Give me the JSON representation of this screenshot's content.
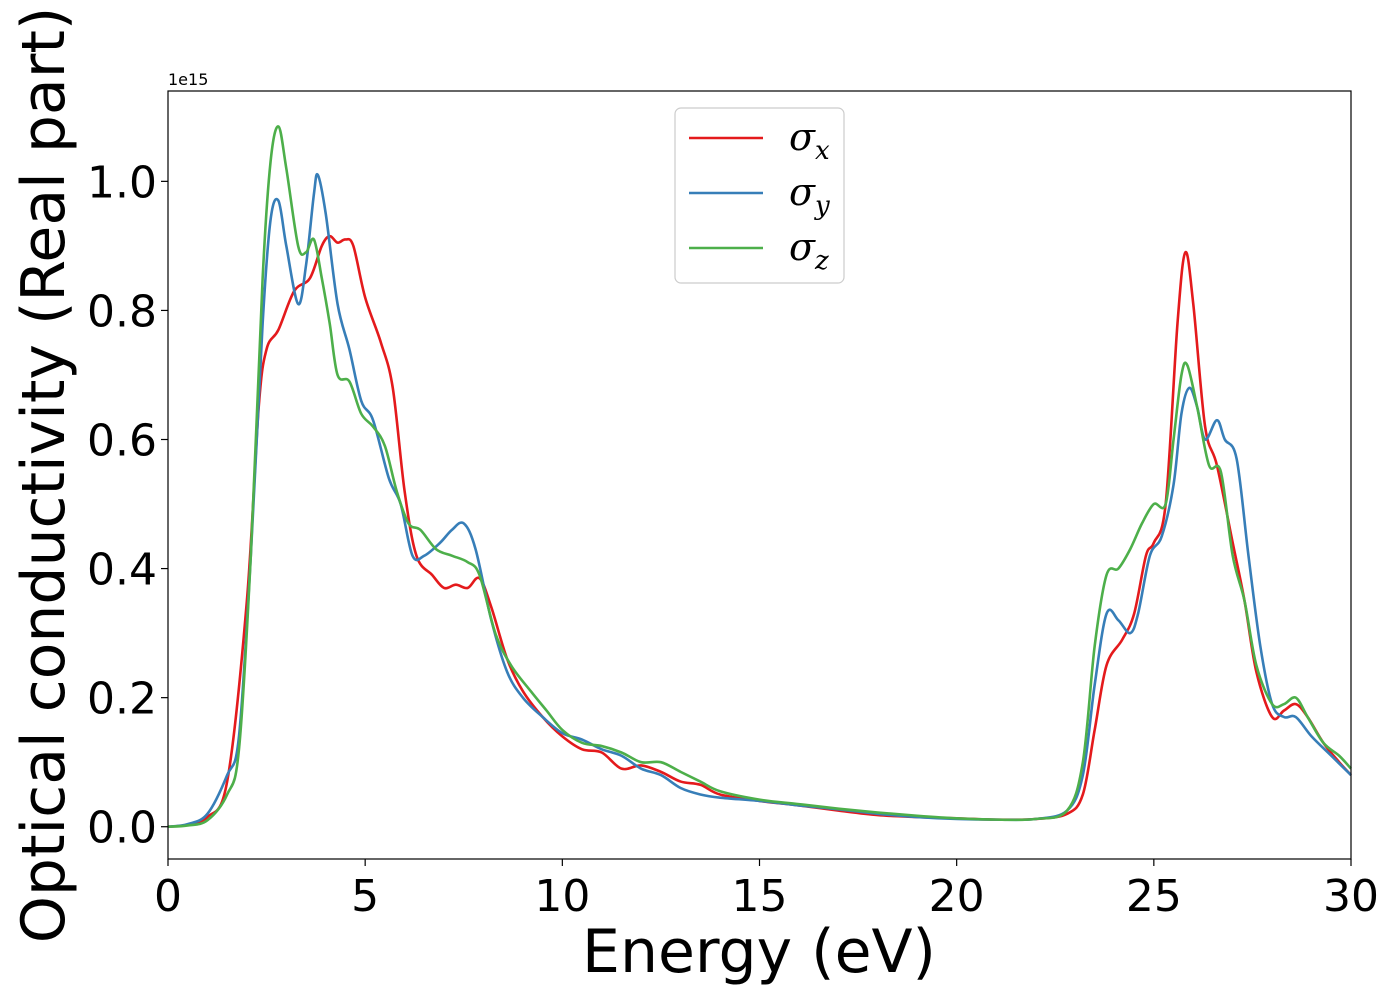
{
  "chart_data": {
    "type": "line",
    "xlabel": "Energy (eV)",
    "ylabel": "Optical conductivity (Real part)",
    "y_offset_text": "1e15",
    "xlim": [
      0,
      30
    ],
    "ylim": [
      -0.05,
      1.14
    ],
    "x_ticks": [
      0,
      5,
      10,
      15,
      20,
      25,
      30
    ],
    "x_tick_labels": [
      "0",
      "5",
      "10",
      "15",
      "20",
      "25",
      "30"
    ],
    "y_ticks": [
      0.0,
      0.2,
      0.4,
      0.6,
      0.8,
      1.0
    ],
    "y_tick_labels": [
      "0.0",
      "0.2",
      "0.4",
      "0.6",
      "0.8",
      "1.0"
    ],
    "grid": false,
    "legend_position": "top-center",
    "series": [
      {
        "name": "σ",
        "subscript": "x",
        "color": "#e41a1c",
        "points": [
          [
            0,
            0
          ],
          [
            0.5,
            0.003
          ],
          [
            1.0,
            0.015
          ],
          [
            1.5,
            0.07
          ],
          [
            2.0,
            0.35
          ],
          [
            2.3,
            0.65
          ],
          [
            2.5,
            0.74
          ],
          [
            2.8,
            0.77
          ],
          [
            3.2,
            0.83
          ],
          [
            3.6,
            0.85
          ],
          [
            3.9,
            0.9
          ],
          [
            4.1,
            0.915
          ],
          [
            4.3,
            0.905
          ],
          [
            4.5,
            0.91
          ],
          [
            4.7,
            0.9
          ],
          [
            5.0,
            0.82
          ],
          [
            5.4,
            0.75
          ],
          [
            5.7,
            0.68
          ],
          [
            6.0,
            0.52
          ],
          [
            6.3,
            0.42
          ],
          [
            6.7,
            0.39
          ],
          [
            7.0,
            0.37
          ],
          [
            7.3,
            0.375
          ],
          [
            7.6,
            0.37
          ],
          [
            7.9,
            0.385
          ],
          [
            8.2,
            0.34
          ],
          [
            8.6,
            0.26
          ],
          [
            9.0,
            0.21
          ],
          [
            9.5,
            0.17
          ],
          [
            10.0,
            0.14
          ],
          [
            10.5,
            0.12
          ],
          [
            11.0,
            0.115
          ],
          [
            11.5,
            0.09
          ],
          [
            12.0,
            0.095
          ],
          [
            12.5,
            0.085
          ],
          [
            13.0,
            0.07
          ],
          [
            13.5,
            0.065
          ],
          [
            14.0,
            0.05
          ],
          [
            15.0,
            0.04
          ],
          [
            16.0,
            0.033
          ],
          [
            17.0,
            0.025
          ],
          [
            18.0,
            0.018
          ],
          [
            19.0,
            0.015
          ],
          [
            20.0,
            0.013
          ],
          [
            21.0,
            0.011
          ],
          [
            22.0,
            0.012
          ],
          [
            22.8,
            0.02
          ],
          [
            23.2,
            0.05
          ],
          [
            23.5,
            0.15
          ],
          [
            23.8,
            0.25
          ],
          [
            24.2,
            0.29
          ],
          [
            24.5,
            0.33
          ],
          [
            24.8,
            0.42
          ],
          [
            25.0,
            0.44
          ],
          [
            25.3,
            0.5
          ],
          [
            25.6,
            0.78
          ],
          [
            25.8,
            0.89
          ],
          [
            26.0,
            0.81
          ],
          [
            26.3,
            0.62
          ],
          [
            26.6,
            0.56
          ],
          [
            27.0,
            0.44
          ],
          [
            27.3,
            0.35
          ],
          [
            27.6,
            0.24
          ],
          [
            28.0,
            0.17
          ],
          [
            28.3,
            0.18
          ],
          [
            28.6,
            0.19
          ],
          [
            28.9,
            0.17
          ],
          [
            29.3,
            0.13
          ],
          [
            29.7,
            0.1
          ],
          [
            30.0,
            0.08
          ]
        ]
      },
      {
        "name": "σ",
        "subscript": "y",
        "color": "#377eb8",
        "points": [
          [
            0,
            0
          ],
          [
            0.5,
            0.004
          ],
          [
            1.0,
            0.02
          ],
          [
            1.5,
            0.08
          ],
          [
            1.8,
            0.14
          ],
          [
            2.1,
            0.42
          ],
          [
            2.4,
            0.78
          ],
          [
            2.6,
            0.94
          ],
          [
            2.8,
            0.97
          ],
          [
            3.0,
            0.9
          ],
          [
            3.3,
            0.81
          ],
          [
            3.5,
            0.87
          ],
          [
            3.7,
            0.98
          ],
          [
            3.8,
            1.01
          ],
          [
            4.0,
            0.95
          ],
          [
            4.3,
            0.81
          ],
          [
            4.6,
            0.74
          ],
          [
            4.9,
            0.66
          ],
          [
            5.2,
            0.63
          ],
          [
            5.6,
            0.54
          ],
          [
            5.9,
            0.5
          ],
          [
            6.2,
            0.42
          ],
          [
            6.5,
            0.42
          ],
          [
            6.9,
            0.44
          ],
          [
            7.2,
            0.46
          ],
          [
            7.5,
            0.47
          ],
          [
            7.8,
            0.43
          ],
          [
            8.2,
            0.32
          ],
          [
            8.6,
            0.24
          ],
          [
            9.0,
            0.2
          ],
          [
            9.5,
            0.17
          ],
          [
            10.0,
            0.145
          ],
          [
            10.5,
            0.135
          ],
          [
            11.0,
            0.12
          ],
          [
            11.5,
            0.11
          ],
          [
            12.0,
            0.09
          ],
          [
            12.5,
            0.08
          ],
          [
            13.0,
            0.06
          ],
          [
            13.5,
            0.05
          ],
          [
            14.0,
            0.045
          ],
          [
            15.0,
            0.04
          ],
          [
            16.0,
            0.033
          ],
          [
            17.0,
            0.027
          ],
          [
            18.0,
            0.02
          ],
          [
            19.0,
            0.015
          ],
          [
            20.0,
            0.012
          ],
          [
            21.0,
            0.011
          ],
          [
            22.0,
            0.012
          ],
          [
            22.8,
            0.025
          ],
          [
            23.2,
            0.08
          ],
          [
            23.5,
            0.22
          ],
          [
            23.8,
            0.33
          ],
          [
            24.1,
            0.32
          ],
          [
            24.4,
            0.3
          ],
          [
            24.6,
            0.33
          ],
          [
            24.9,
            0.42
          ],
          [
            25.2,
            0.45
          ],
          [
            25.5,
            0.53
          ],
          [
            25.7,
            0.64
          ],
          [
            25.9,
            0.68
          ],
          [
            26.1,
            0.65
          ],
          [
            26.3,
            0.6
          ],
          [
            26.6,
            0.63
          ],
          [
            26.8,
            0.6
          ],
          [
            27.1,
            0.57
          ],
          [
            27.4,
            0.42
          ],
          [
            27.7,
            0.28
          ],
          [
            28.0,
            0.19
          ],
          [
            28.3,
            0.17
          ],
          [
            28.6,
            0.17
          ],
          [
            29.0,
            0.14
          ],
          [
            29.5,
            0.11
          ],
          [
            30.0,
            0.08
          ]
        ]
      },
      {
        "name": "σ",
        "subscript": "z",
        "color": "#4daf4a",
        "points": [
          [
            0,
            0
          ],
          [
            0.5,
            0.002
          ],
          [
            1.0,
            0.01
          ],
          [
            1.5,
            0.05
          ],
          [
            1.8,
            0.12
          ],
          [
            2.1,
            0.42
          ],
          [
            2.4,
            0.85
          ],
          [
            2.6,
            1.03
          ],
          [
            2.8,
            1.085
          ],
          [
            3.0,
            1.02
          ],
          [
            3.3,
            0.9
          ],
          [
            3.5,
            0.89
          ],
          [
            3.7,
            0.91
          ],
          [
            3.9,
            0.85
          ],
          [
            4.1,
            0.78
          ],
          [
            4.3,
            0.7
          ],
          [
            4.6,
            0.69
          ],
          [
            4.9,
            0.64
          ],
          [
            5.2,
            0.62
          ],
          [
            5.5,
            0.59
          ],
          [
            5.8,
            0.52
          ],
          [
            6.1,
            0.47
          ],
          [
            6.4,
            0.46
          ],
          [
            6.8,
            0.43
          ],
          [
            7.2,
            0.42
          ],
          [
            7.6,
            0.41
          ],
          [
            7.9,
            0.39
          ],
          [
            8.3,
            0.3
          ],
          [
            8.7,
            0.25
          ],
          [
            9.2,
            0.21
          ],
          [
            9.6,
            0.18
          ],
          [
            10.0,
            0.15
          ],
          [
            10.5,
            0.13
          ],
          [
            11.0,
            0.125
          ],
          [
            11.5,
            0.115
          ],
          [
            12.0,
            0.1
          ],
          [
            12.5,
            0.1
          ],
          [
            13.0,
            0.085
          ],
          [
            13.5,
            0.07
          ],
          [
            14.0,
            0.055
          ],
          [
            15.0,
            0.042
          ],
          [
            16.0,
            0.035
          ],
          [
            17.0,
            0.028
          ],
          [
            18.0,
            0.022
          ],
          [
            19.0,
            0.017
          ],
          [
            20.0,
            0.013
          ],
          [
            21.0,
            0.011
          ],
          [
            22.0,
            0.012
          ],
          [
            22.8,
            0.025
          ],
          [
            23.2,
            0.1
          ],
          [
            23.5,
            0.28
          ],
          [
            23.8,
            0.39
          ],
          [
            24.1,
            0.4
          ],
          [
            24.4,
            0.43
          ],
          [
            24.7,
            0.47
          ],
          [
            25.0,
            0.5
          ],
          [
            25.3,
            0.5
          ],
          [
            25.5,
            0.6
          ],
          [
            25.7,
            0.7
          ],
          [
            25.85,
            0.715
          ],
          [
            26.1,
            0.65
          ],
          [
            26.4,
            0.56
          ],
          [
            26.7,
            0.55
          ],
          [
            27.0,
            0.42
          ],
          [
            27.3,
            0.35
          ],
          [
            27.6,
            0.25
          ],
          [
            28.0,
            0.19
          ],
          [
            28.3,
            0.19
          ],
          [
            28.6,
            0.2
          ],
          [
            28.9,
            0.17
          ],
          [
            29.3,
            0.13
          ],
          [
            29.7,
            0.11
          ],
          [
            30.0,
            0.09
          ]
        ]
      }
    ]
  }
}
